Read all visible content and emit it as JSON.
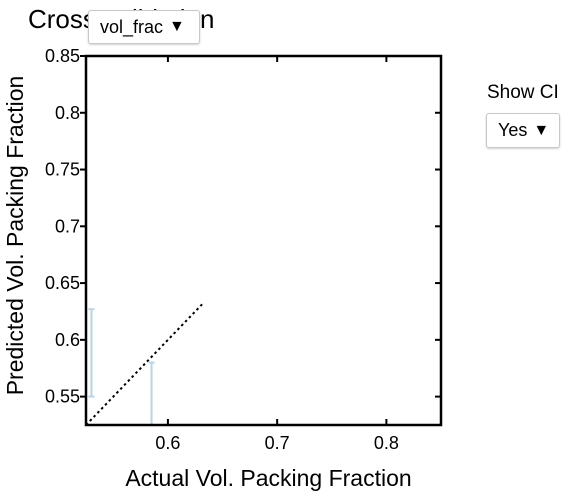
{
  "page": {
    "title": "Cross-validation"
  },
  "controls": {
    "metric_value": "vol_frac",
    "show_ci_label": "Show CI",
    "show_ci_value": "Yes",
    "caret": "▼"
  },
  "colors": {
    "background": "#ffffff",
    "frame": "#000000",
    "parity_line": "#000000",
    "error_bar": "#b8d4e8"
  },
  "chart_data": {
    "type": "scatter",
    "xlabel": "Actual Vol. Packing Fraction",
    "ylabel": "Predicted Vol. Packing Fraction",
    "xlim": [
      0.525,
      0.85
    ],
    "ylim": [
      0.525,
      0.85
    ],
    "x_ticks": [
      0.6,
      0.7,
      0.8
    ],
    "x_tick_labels": [
      "0.6",
      "0.7",
      "0.8"
    ],
    "y_ticks": [
      0.55,
      0.6,
      0.65,
      0.7,
      0.75,
      0.8,
      0.85
    ],
    "y_tick_labels": [
      "0.55",
      "0.6",
      "0.65",
      "0.7",
      "0.75",
      "0.8",
      "0.85"
    ],
    "parity_line": {
      "x": [
        0.525,
        0.632
      ],
      "y": [
        0.525,
        0.632
      ]
    },
    "error_bars": [
      {
        "x": 0.53,
        "low": 0.55,
        "high": 0.627
      },
      {
        "x": 0.585,
        "low": 0.525,
        "high": 0.58
      }
    ],
    "grid": false,
    "legend": "none"
  }
}
